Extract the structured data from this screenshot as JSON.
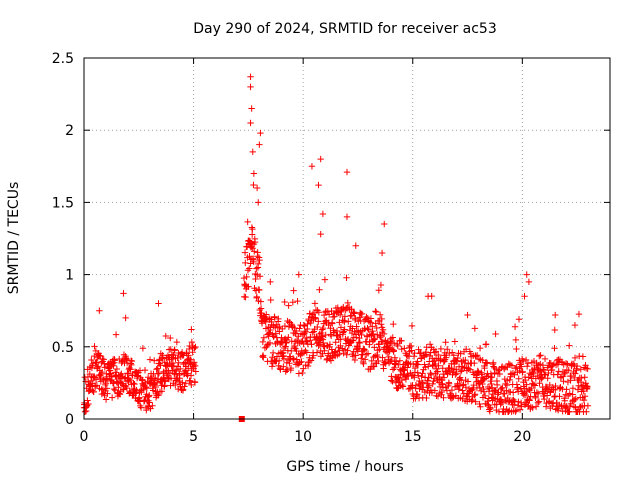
{
  "chart_data": {
    "type": "scatter",
    "title": "Day 290 of 2024, SRMTID for receiver ac53",
    "xlabel": "GPS time / hours",
    "ylabel": "SRMTID / TECUs",
    "xlim": [
      0,
      24
    ],
    "ylim": [
      0,
      2.5
    ],
    "xticks": [
      0,
      5,
      10,
      15,
      20
    ],
    "xtick_labels": [
      "0",
      "5",
      "10",
      "15",
      "20"
    ],
    "yticks": [
      0,
      0.5,
      1,
      1.5,
      2,
      2.5
    ],
    "ytick_labels": [
      "0",
      "0.5",
      "1",
      "1.5",
      "2",
      "2.5"
    ],
    "grid": true,
    "marker": "plus",
    "color": "#ff0000",
    "gap_marker": {
      "x": 7.2,
      "y": 0.0
    },
    "series": [
      {
        "name": "SRMTID",
        "segments": [
          {
            "x_start": 0.0,
            "x_end": 5.1,
            "base": [
              [
                0,
                0.12
              ],
              [
                0.3,
                0.28
              ],
              [
                0.6,
                0.35
              ],
              [
                1.0,
                0.25
              ],
              [
                1.5,
                0.28
              ],
              [
                2.0,
                0.3
              ],
              [
                2.5,
                0.2
              ],
              [
                3.0,
                0.18
              ],
              [
                3.5,
                0.3
              ],
              [
                4.0,
                0.35
              ],
              [
                4.5,
                0.32
              ],
              [
                5.1,
                0.38
              ]
            ],
            "spread": 0.14,
            "spikes": [
              [
                0.7,
                0.75
              ],
              [
                1.8,
                0.87
              ],
              [
                1.9,
                0.7
              ],
              [
                3.4,
                0.8
              ],
              [
                4.9,
                0.62
              ]
            ]
          },
          {
            "x_start": 7.3,
            "x_end": 8.1,
            "base": [
              [
                7.3,
                0.95
              ],
              [
                7.6,
                1.15
              ],
              [
                7.9,
                1.0
              ],
              [
                8.1,
                0.85
              ]
            ],
            "spread": 0.2,
            "spikes": [
              [
                7.6,
                2.37
              ],
              [
                7.6,
                2.3
              ],
              [
                7.65,
                2.15
              ],
              [
                7.6,
                2.05
              ],
              [
                7.7,
                1.85
              ],
              [
                7.75,
                1.7
              ],
              [
                8.05,
                1.98
              ],
              [
                8.0,
                1.9
              ],
              [
                7.9,
                1.6
              ],
              [
                7.95,
                1.5
              ]
            ]
          },
          {
            "x_start": 8.1,
            "x_end": 23.0,
            "base": [
              [
                8.1,
                0.55
              ],
              [
                9.0,
                0.5
              ],
              [
                10.0,
                0.45
              ],
              [
                10.5,
                0.6
              ],
              [
                11.0,
                0.55
              ],
              [
                12.0,
                0.6
              ],
              [
                13.0,
                0.5
              ],
              [
                13.5,
                0.55
              ],
              [
                14.0,
                0.4
              ],
              [
                15.0,
                0.3
              ],
              [
                16.0,
                0.3
              ],
              [
                17.0,
                0.3
              ],
              [
                18.0,
                0.25
              ],
              [
                19.0,
                0.18
              ],
              [
                20.0,
                0.22
              ],
              [
                21.0,
                0.25
              ],
              [
                22.0,
                0.2
              ],
              [
                23.0,
                0.18
              ]
            ],
            "spread": 0.18,
            "spikes": [
              [
                10.4,
                1.75
              ],
              [
                10.8,
                1.8
              ],
              [
                10.7,
                1.62
              ],
              [
                10.9,
                1.42
              ],
              [
                10.8,
                1.28
              ],
              [
                12.0,
                1.71
              ],
              [
                12.0,
                1.4
              ],
              [
                12.4,
                1.2
              ],
              [
                13.7,
                1.35
              ],
              [
                13.6,
                1.15
              ],
              [
                9.8,
                1.0
              ],
              [
                15.7,
                0.85
              ],
              [
                20.2,
                1.0
              ],
              [
                20.3,
                0.95
              ],
              [
                20.1,
                0.85
              ],
              [
                21.5,
                0.72
              ],
              [
                22.4,
                0.65
              ],
              [
                17.5,
                0.72
              ],
              [
                8.5,
                0.95
              ]
            ]
          }
        ]
      }
    ]
  }
}
